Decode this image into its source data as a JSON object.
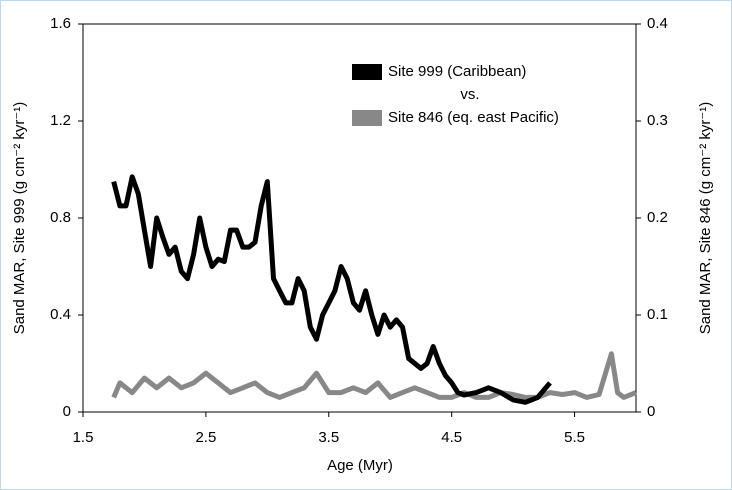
{
  "chart_data": {
    "type": "line",
    "x_label": "Age (Myr)",
    "y_label": "Sand MAR, Site 999 (g cm⁻² kyr⁻¹)",
    "y2_label": "Sand MAR, Site 846 (g cm⁻² kyr⁻¹)",
    "annotation": "vs.",
    "xlim": [
      1.5,
      6
    ],
    "xticks": [
      1.5,
      2.5,
      3.5,
      4.5,
      5.5
    ],
    "ylim": [
      0,
      1.6
    ],
    "yticks": [
      0,
      0.4,
      0.8,
      1.2,
      1.6
    ],
    "y2lim": [
      0,
      0.4
    ],
    "y2ticks": [
      0,
      0.1,
      0.2,
      0.3,
      0.4
    ],
    "legend": "top-right",
    "series": [
      {
        "name": "Site 999 (Caribbean)",
        "color": "#000000",
        "axis": "y",
        "x": [
          1.75,
          1.8,
          1.85,
          1.9,
          1.95,
          2.0,
          2.05,
          2.1,
          2.15,
          2.2,
          2.25,
          2.3,
          2.35,
          2.4,
          2.45,
          2.5,
          2.55,
          2.6,
          2.65,
          2.7,
          2.75,
          2.8,
          2.85,
          2.9,
          2.95,
          3.0,
          3.05,
          3.1,
          3.15,
          3.2,
          3.25,
          3.3,
          3.35,
          3.4,
          3.45,
          3.5,
          3.55,
          3.6,
          3.65,
          3.7,
          3.75,
          3.8,
          3.85,
          3.9,
          3.95,
          4.0,
          4.05,
          4.1,
          4.15,
          4.2,
          4.25,
          4.3,
          4.35,
          4.4,
          4.45,
          4.5,
          4.55,
          4.6,
          4.7,
          4.8,
          4.9,
          5.0,
          5.1,
          5.2,
          5.3
        ],
        "values": [
          0.95,
          0.85,
          0.85,
          0.97,
          0.9,
          0.75,
          0.6,
          0.8,
          0.72,
          0.65,
          0.68,
          0.58,
          0.55,
          0.65,
          0.8,
          0.68,
          0.6,
          0.63,
          0.62,
          0.75,
          0.75,
          0.68,
          0.68,
          0.7,
          0.85,
          0.95,
          0.55,
          0.5,
          0.45,
          0.45,
          0.55,
          0.5,
          0.35,
          0.3,
          0.4,
          0.45,
          0.5,
          0.6,
          0.55,
          0.45,
          0.42,
          0.5,
          0.4,
          0.32,
          0.4,
          0.35,
          0.38,
          0.35,
          0.22,
          0.2,
          0.18,
          0.2,
          0.27,
          0.2,
          0.15,
          0.12,
          0.08,
          0.07,
          0.08,
          0.1,
          0.08,
          0.05,
          0.04,
          0.06,
          0.12
        ]
      },
      {
        "name": "Site 846 (eq. east Pacific)",
        "color": "#888888",
        "axis": "y2",
        "x": [
          1.75,
          1.8,
          1.9,
          2.0,
          2.1,
          2.2,
          2.3,
          2.4,
          2.5,
          2.6,
          2.7,
          2.8,
          2.9,
          3.0,
          3.1,
          3.2,
          3.3,
          3.4,
          3.5,
          3.6,
          3.7,
          3.8,
          3.9,
          4.0,
          4.1,
          4.2,
          4.3,
          4.4,
          4.5,
          4.6,
          4.7,
          4.8,
          4.9,
          5.0,
          5.1,
          5.2,
          5.3,
          5.4,
          5.5,
          5.6,
          5.7,
          5.8,
          5.85,
          5.9,
          6.0
        ],
        "values": [
          0.015,
          0.03,
          0.02,
          0.035,
          0.025,
          0.035,
          0.025,
          0.03,
          0.04,
          0.03,
          0.02,
          0.025,
          0.03,
          0.02,
          0.015,
          0.02,
          0.025,
          0.04,
          0.02,
          0.02,
          0.025,
          0.02,
          0.03,
          0.015,
          0.02,
          0.025,
          0.02,
          0.015,
          0.015,
          0.02,
          0.015,
          0.015,
          0.02,
          0.018,
          0.015,
          0.015,
          0.02,
          0.018,
          0.02,
          0.015,
          0.018,
          0.06,
          0.02,
          0.015,
          0.02
        ]
      }
    ]
  }
}
